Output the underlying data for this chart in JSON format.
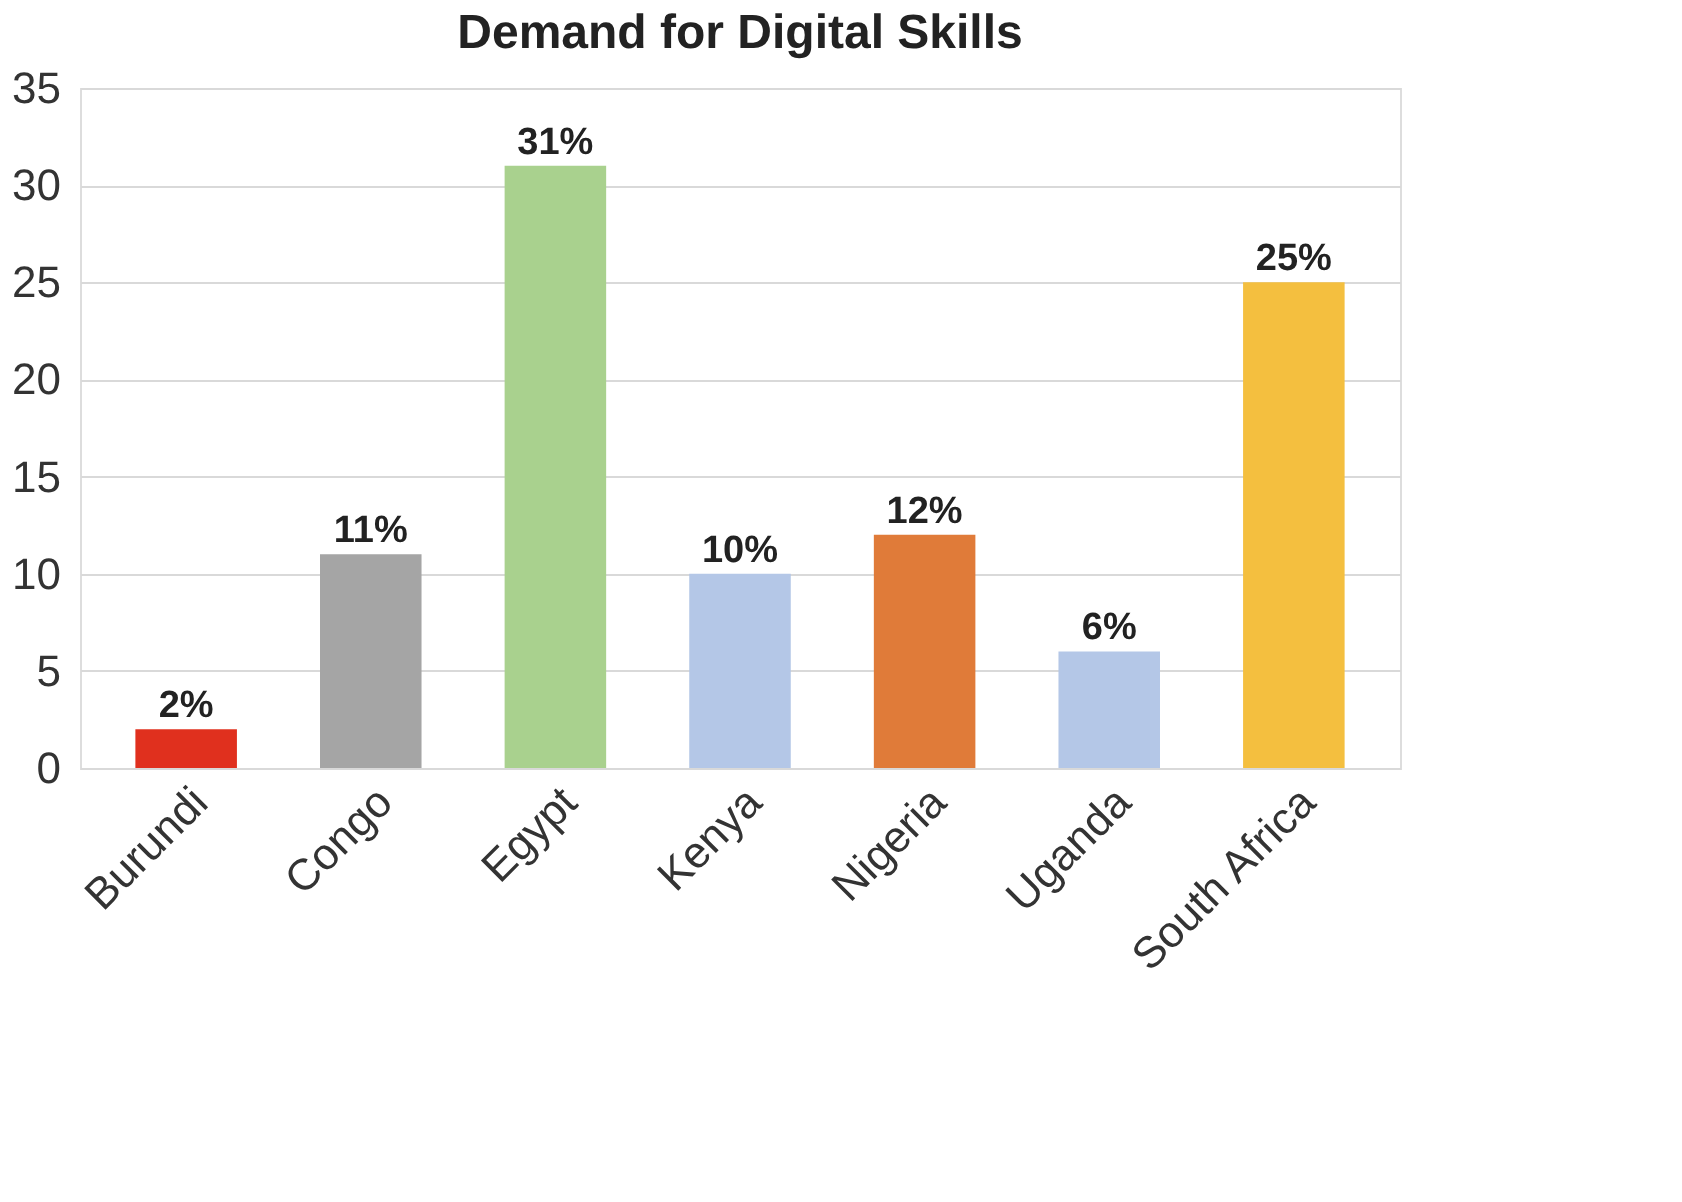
{
  "chart_data": {
    "type": "bar",
    "title": "Demand for Digital Skills",
    "categories": [
      "Burundi",
      "Congo",
      "Egypt",
      "Kenya",
      "Nigeria",
      "Uganda",
      "South Africa"
    ],
    "values": [
      2,
      11,
      31,
      10,
      12,
      6,
      25
    ],
    "value_labels": [
      "2%",
      "11%",
      "31%",
      "10%",
      "12%",
      "6%",
      "25%"
    ],
    "colors": [
      "#e0301e",
      "#a5a5a5",
      "#a9d18e",
      "#b4c7e7",
      "#e07b39",
      "#b4c7e7",
      "#f4bf3f"
    ],
    "ylim": [
      0,
      35
    ],
    "yticks": [
      0,
      5,
      10,
      15,
      20,
      25,
      30,
      35
    ],
    "grid": "y",
    "legend": false
  }
}
